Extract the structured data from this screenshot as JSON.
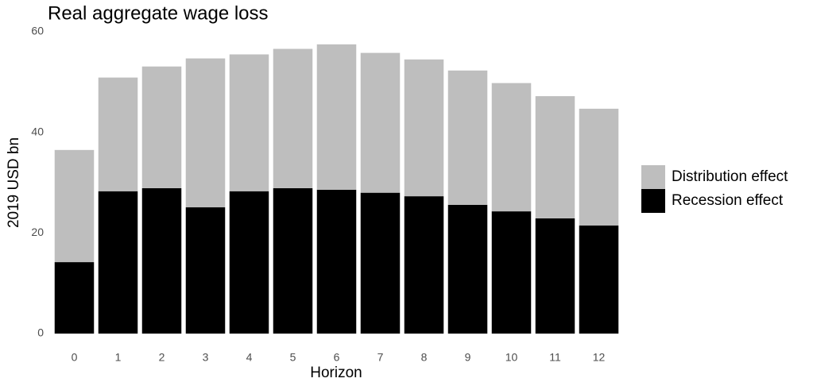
{
  "chart_data": {
    "type": "stacked_bar",
    "title": "Real aggregate wage loss",
    "x_label": "Horizon",
    "y_label": "2019 USD bn",
    "categories": [
      "0",
      "1",
      "2",
      "3",
      "4",
      "5",
      "6",
      "7",
      "8",
      "9",
      "10",
      "11",
      "12"
    ],
    "series": [
      {
        "name": "Recession effect",
        "color": "#000000",
        "values": [
          14.2,
          28.3,
          28.9,
          25.1,
          28.3,
          28.9,
          28.6,
          28.0,
          27.3,
          25.6,
          24.3,
          22.9,
          21.5
        ]
      },
      {
        "name": "Distribution effect",
        "color": "#bebebe",
        "values": [
          22.3,
          22.6,
          24.2,
          29.6,
          27.2,
          27.7,
          28.9,
          27.8,
          27.2,
          26.7,
          25.5,
          24.3,
          23.2
        ]
      }
    ],
    "ylim": [
      0,
      60
    ],
    "yticks": [
      0,
      20,
      40,
      60
    ]
  }
}
